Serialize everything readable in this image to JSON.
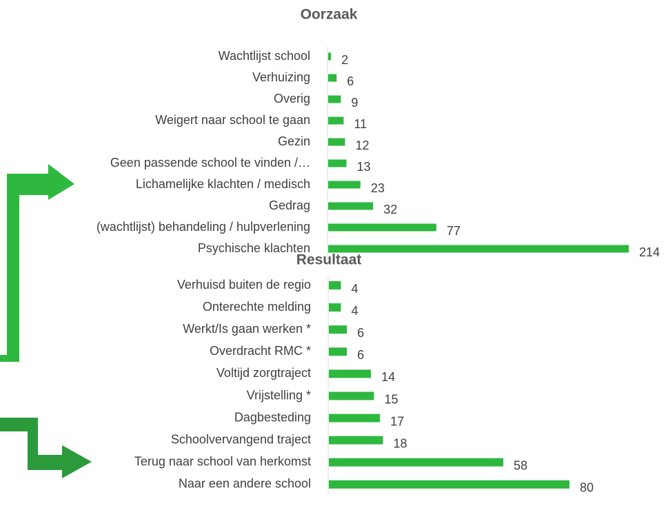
{
  "chart_data": [
    {
      "type": "bar",
      "orientation": "horizontal",
      "title": "Oorzaak",
      "color": "#2fb83f",
      "categories": [
        "Wachtlijst school",
        "Verhuizing",
        "Overig",
        "Weigert naar school te gaan",
        "Gezin",
        "Geen passende school te vinden /…",
        "Lichamelijke klachten / medisch",
        "Gedrag",
        "(wachtlijst) behandeling / hulpverlening",
        "Psychische klachten"
      ],
      "values": [
        2,
        6,
        9,
        11,
        12,
        13,
        23,
        32,
        77,
        214
      ]
    },
    {
      "type": "bar",
      "orientation": "horizontal",
      "title": "Resultaat",
      "color": "#2fb83f",
      "categories": [
        "Verhuisd buiten de regio",
        "Onterechte melding",
        "Werkt/Is gaan werken *",
        "Overdracht RMC *",
        "Voltijd zorgtraject ",
        "Vrijstelling *",
        "Dagbesteding",
        "Schoolvervangend traject",
        "Terug naar school van herkomst",
        "Naar een andere school"
      ],
      "values": [
        4,
        4,
        6,
        6,
        14,
        15,
        17,
        18,
        58,
        80
      ]
    }
  ]
}
